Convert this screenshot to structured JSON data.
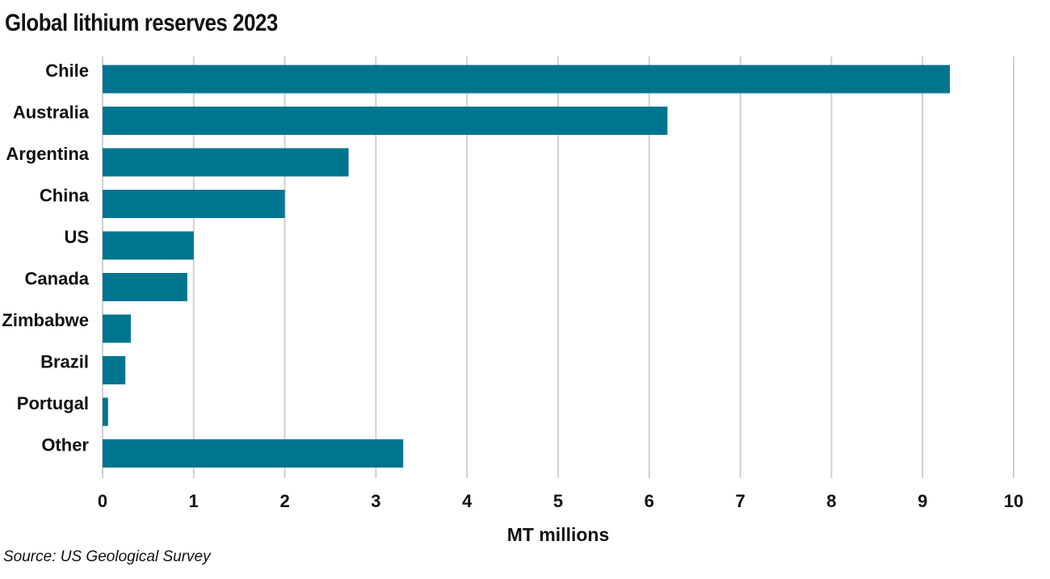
{
  "chart_data": {
    "type": "bar",
    "orientation": "horizontal",
    "title": "Global lithium reserves 2023",
    "xlabel": "MT millions",
    "ylabel": "",
    "categories": [
      "Chile",
      "Australia",
      "Argentina",
      "China",
      "US",
      "Canada",
      "Zimbabwe",
      "Brazil",
      "Portugal",
      "Other"
    ],
    "values": [
      9.3,
      6.2,
      2.7,
      2.0,
      1.0,
      0.93,
      0.31,
      0.25,
      0.06,
      3.3
    ],
    "xlim": [
      0,
      10
    ],
    "xticks": [
      "0",
      "1",
      "2",
      "3",
      "4",
      "5",
      "6",
      "7",
      "8",
      "9",
      "10"
    ],
    "grid": true,
    "legend": "none",
    "bar_color": "#00758f",
    "grid_color": "#d0d0d0",
    "source": "Source: US Geological Survey"
  }
}
